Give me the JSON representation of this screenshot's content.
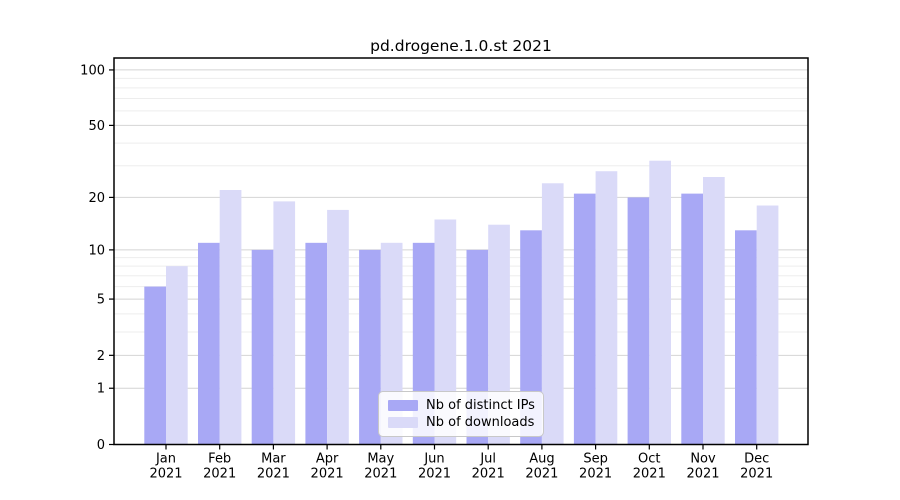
{
  "chart_data": {
    "type": "bar",
    "title": "pd.drogene.1.0.st 2021",
    "categories": [
      "Jan 2021",
      "Feb 2021",
      "Mar 2021",
      "Apr 2021",
      "May 2021",
      "Jun 2021",
      "Jul 2021",
      "Aug 2021",
      "Sep 2021",
      "Oct 2021",
      "Nov 2021",
      "Dec 2021"
    ],
    "series": [
      {
        "name": "Nb of distinct IPs",
        "color": "#a8a8f5",
        "values": [
          6,
          11,
          10,
          11,
          10,
          11,
          10,
          13,
          21,
          20,
          21,
          13
        ]
      },
      {
        "name": "Nb of downloads",
        "color": "#dadaf8",
        "values": [
          8,
          22,
          19,
          17,
          11,
          15,
          14,
          24,
          28,
          32,
          26,
          18
        ]
      }
    ],
    "xlabel": "",
    "ylabel": "",
    "y_scale": "log1p",
    "ylim": [
      0,
      116
    ],
    "y_major_ticks": [
      0,
      1,
      2,
      5,
      10,
      20,
      50,
      100
    ],
    "y_minor_gridlines": [
      3,
      4,
      6,
      7,
      8,
      9,
      30,
      40,
      60,
      70,
      80,
      90
    ],
    "grid": "horizontal",
    "legend_position": "lower center",
    "colors": {
      "major_gridline": "#d4d4d4",
      "minor_gridline": "#ededed",
      "spine": "#000000",
      "text": "#000000"
    }
  }
}
